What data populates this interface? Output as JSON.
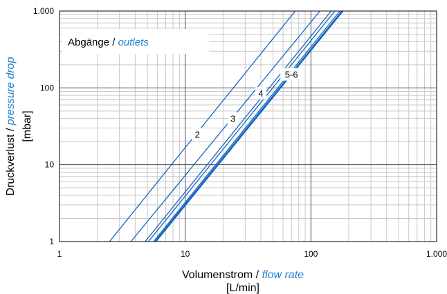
{
  "chart_data": {
    "type": "line",
    "title": "",
    "x_scale": "log",
    "y_scale": "log",
    "xlim": [
      1,
      1000
    ],
    "ylim": [
      1,
      1000
    ],
    "x_ticks": [
      {
        "value": 1,
        "label": "1"
      },
      {
        "value": 10,
        "label": "10"
      },
      {
        "value": 100,
        "label": "100"
      },
      {
        "value": 1000,
        "label": "1.000"
      }
    ],
    "y_ticks": [
      {
        "value": 1,
        "label": "1"
      },
      {
        "value": 10,
        "label": "10"
      },
      {
        "value": 100,
        "label": "100"
      },
      {
        "value": 1000,
        "label": "1.000"
      }
    ],
    "xlabel": {
      "de": "Volumenstrom / ",
      "en": "flow rate",
      "unit": "[L/min]"
    },
    "ylabel": {
      "de": "Druckverlust / ",
      "en": "pressure drop",
      "unit": "[mbar]"
    },
    "inset_label": {
      "de": "Abgänge / ",
      "en": "outlets"
    },
    "grid": true,
    "series": [
      {
        "label": "2",
        "x": [
          2.5,
          75
        ],
        "y": [
          1,
          1000
        ],
        "label_at": [
          12.5,
          25
        ]
      },
      {
        "label": "3",
        "x": [
          3.7,
          118
        ],
        "y": [
          1,
          1000
        ],
        "label_at": [
          24,
          40
        ]
      },
      {
        "label": "4",
        "x": [
          5.1,
          155
        ],
        "y": [
          1,
          1000
        ],
        "label_at": [
          40,
          85
        ]
      },
      {
        "label": "5-6",
        "x": [
          5.8,
          178
        ],
        "y": [
          1,
          1000
        ],
        "label_at": [
          70,
          150
        ],
        "bold": true
      }
    ],
    "extra_lines": [
      {
        "x": [
          4.8,
          145
        ],
        "y": [
          1,
          1000
        ]
      },
      {
        "x": [
          5.6,
          170
        ],
        "y": [
          1,
          1000
        ]
      }
    ],
    "colors": {
      "series": "#1565c0",
      "italic_text": "#1f7fd1",
      "major_grid": "#4a4a4a",
      "minor_grid": "#c8c8c8",
      "axis_text": "#000000"
    }
  }
}
